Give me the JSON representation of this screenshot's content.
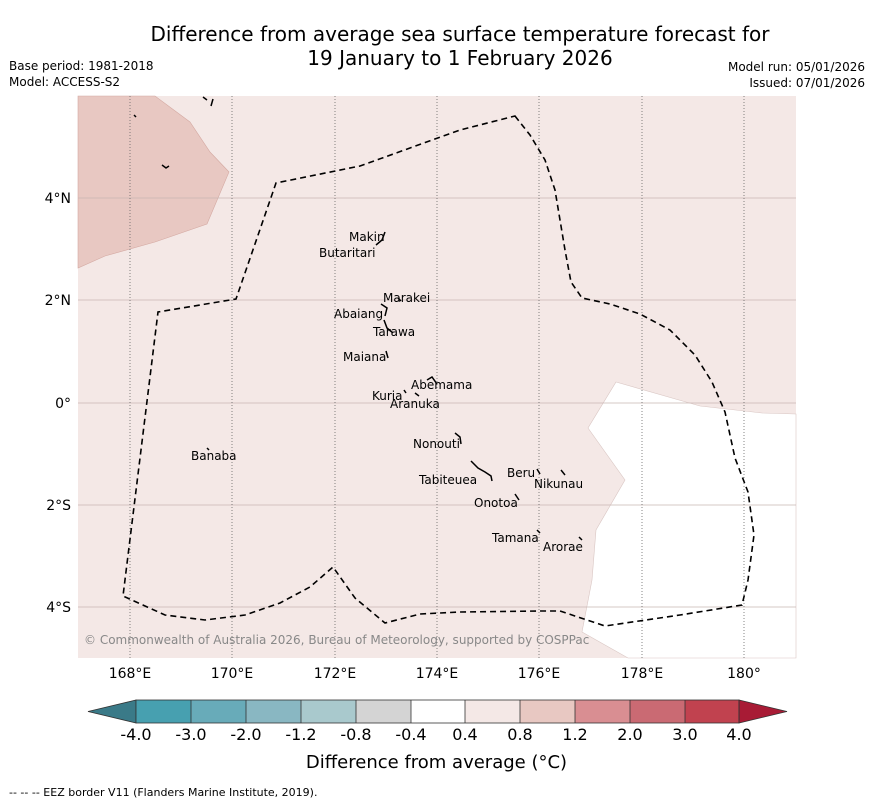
{
  "title_line1": "Difference from average sea surface temperature forecast for",
  "title_line2": "19 January to 1 February 2026",
  "base_period": "Base period: 1981-2018",
  "model": "Model: ACCESS-S2",
  "model_run": "Model run: 05/01/2026",
  "issued": "Issued: 07/01/2026",
  "lon_ticks": [
    "168°E",
    "170°E",
    "172°E",
    "174°E",
    "176°E",
    "178°E",
    "180°"
  ],
  "lat_ticks": [
    "4°N",
    "2°N",
    "0°",
    "2°S",
    "4°S"
  ],
  "islands": {
    "makin": "Makin",
    "butaritari": "Butaritari",
    "marakei": "Marakei",
    "abaiang": "Abaiang",
    "tarawa": "Tarawa",
    "maiana": "Maiana",
    "abemama": "Abemama",
    "kuria": "Kuria",
    "aranuka": "Aranuka",
    "banaba": "Banaba",
    "nonouti": "Nonouti",
    "beru": "Beru",
    "nikunau": "Nikunau",
    "tabiteuea": "Tabiteuea",
    "onotoa": "Onotoa",
    "tamana": "Tamana",
    "arorae": "Arorae"
  },
  "copyright": "© Commonwealth of Australia 2026, Bureau of Meteorology, supported by COSPPac",
  "colorbar": {
    "ticks": [
      "-4.0",
      "-3.0",
      "-2.0",
      "-1.2",
      "-0.8",
      "-0.4",
      "0.4",
      "0.8",
      "1.2",
      "2.0",
      "3.0",
      "4.0"
    ],
    "colors": {
      "below_min": "#3a7a88",
      "bins": [
        "#47a0b0",
        "#68abb9",
        "#89b7c2",
        "#a9c9cd",
        "#d4d4d4",
        "#ffffff",
        "#f4e8e6",
        "#e8c8c2",
        "#d98e92",
        "#ca6a73",
        "#c1424f"
      ],
      "above_max": "#a81b35"
    },
    "title": "Difference from average (°C)"
  },
  "footer": "--  --  -- EEZ border V11 (Flanders Marine Institute, 2019)."
}
